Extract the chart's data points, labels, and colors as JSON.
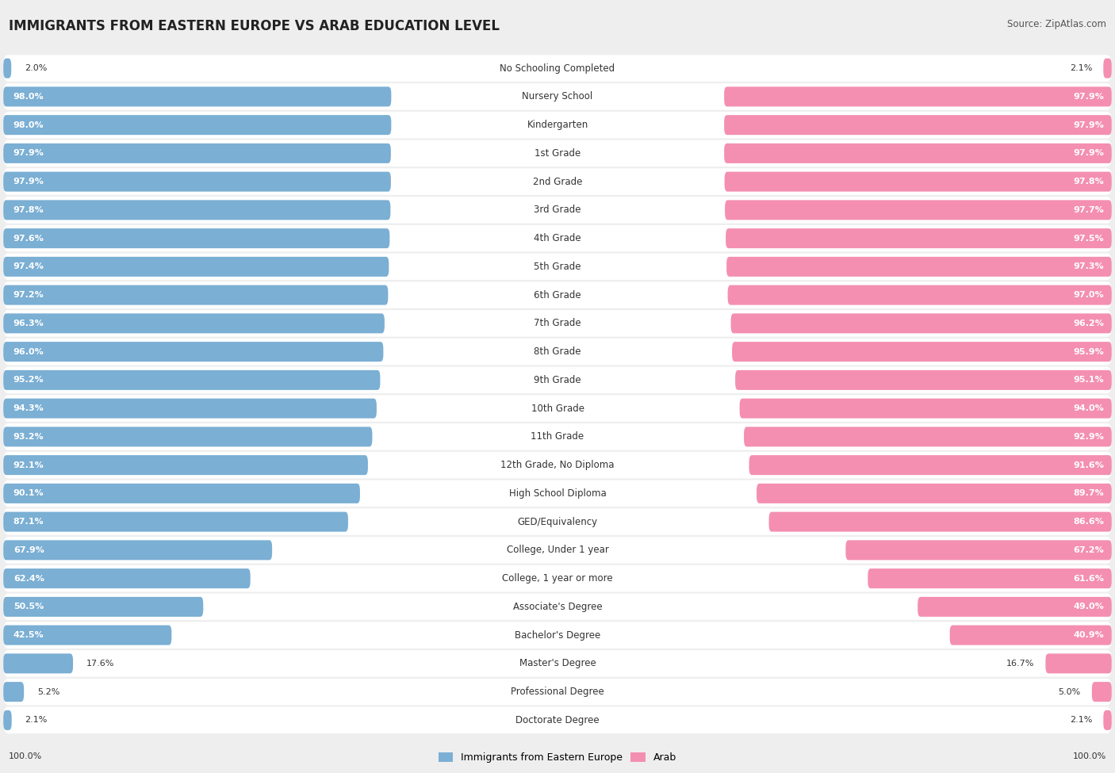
{
  "title": "IMMIGRANTS FROM EASTERN EUROPE VS ARAB EDUCATION LEVEL",
  "source": "Source: ZipAtlas.com",
  "categories": [
    "No Schooling Completed",
    "Nursery School",
    "Kindergarten",
    "1st Grade",
    "2nd Grade",
    "3rd Grade",
    "4th Grade",
    "5th Grade",
    "6th Grade",
    "7th Grade",
    "8th Grade",
    "9th Grade",
    "10th Grade",
    "11th Grade",
    "12th Grade, No Diploma",
    "High School Diploma",
    "GED/Equivalency",
    "College, Under 1 year",
    "College, 1 year or more",
    "Associate's Degree",
    "Bachelor's Degree",
    "Master's Degree",
    "Professional Degree",
    "Doctorate Degree"
  ],
  "eastern_europe": [
    2.0,
    98.0,
    98.0,
    97.9,
    97.9,
    97.8,
    97.6,
    97.4,
    97.2,
    96.3,
    96.0,
    95.2,
    94.3,
    93.2,
    92.1,
    90.1,
    87.1,
    67.9,
    62.4,
    50.5,
    42.5,
    17.6,
    5.2,
    2.1
  ],
  "arab": [
    2.1,
    97.9,
    97.9,
    97.9,
    97.8,
    97.7,
    97.5,
    97.3,
    97.0,
    96.2,
    95.9,
    95.1,
    94.0,
    92.9,
    91.6,
    89.7,
    86.6,
    67.2,
    61.6,
    49.0,
    40.9,
    16.7,
    5.0,
    2.1
  ],
  "eastern_europe_color": "#7bafd4",
  "arab_color": "#f48fb1",
  "background_color": "#eeeeee",
  "bar_bg_color": "#ffffff",
  "row_gap_color": "#eeeeee",
  "label_fontsize": 8.5,
  "title_fontsize": 12,
  "source_fontsize": 8.5,
  "legend_fontsize": 9,
  "value_fontsize": 8.0
}
